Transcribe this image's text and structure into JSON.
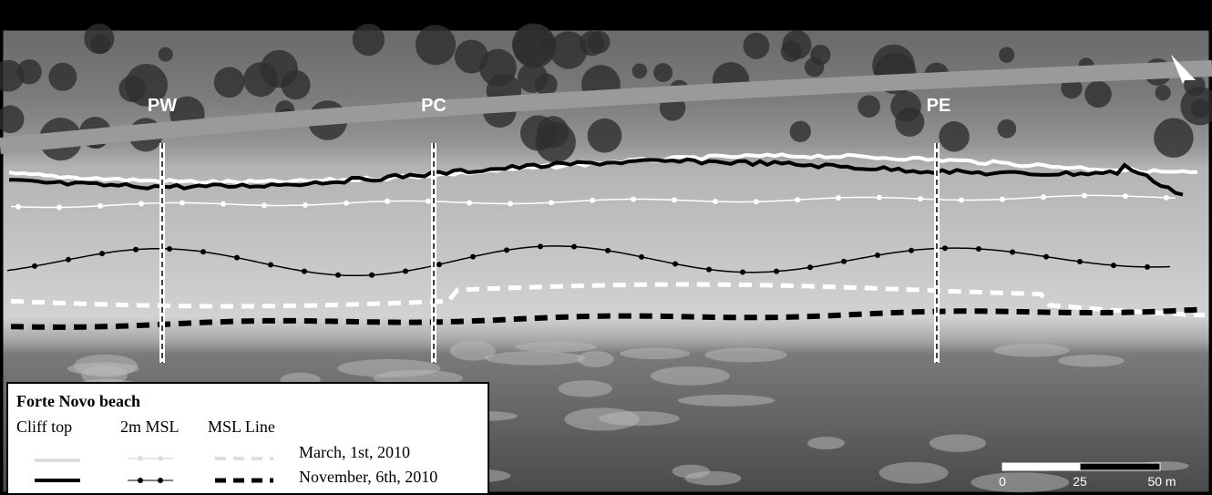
{
  "profiles": [
    "PW",
    "PC",
    "PE"
  ],
  "legend": {
    "title": "Forte Novo beach",
    "columns": [
      "Cliff top",
      "2m MSL",
      "MSL Line"
    ],
    "dates": [
      "March, 1st, 2010",
      "November, 6th, 2010"
    ]
  },
  "scale_bar": {
    "labels": [
      "0",
      "25",
      "50 m"
    ]
  }
}
